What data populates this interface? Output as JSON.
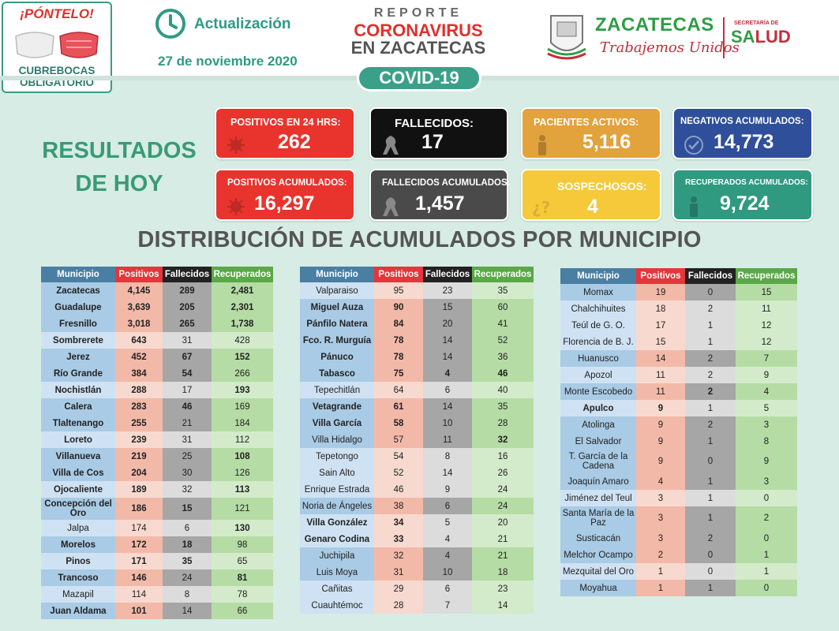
{
  "header": {
    "mask_title": "¡PÓNTELO!",
    "mask_subtitle_1": "CUBREBOCAS",
    "mask_subtitle_2": "OBLIGATORIO",
    "update_label": "Actualización",
    "update_date": "27 de noviembre 2020",
    "report_line1": "REPORTE",
    "report_line2": "CORONAVIRUS",
    "report_line3": "EN ZACATECAS",
    "covid_label": "COVID-19",
    "brand_name": "ZACATECAS",
    "brand_slogan": "Trabajemos Unidos",
    "secretaria_label": "SECRETARÍA DE",
    "salud_a": "SA",
    "salud_b": "LUD"
  },
  "results": {
    "title_line1": "RESULTADOS",
    "title_line2": "DE HOY",
    "cards": [
      {
        "label": "POSITIVOS EN 24 HRS:",
        "value": "262",
        "color": "#e8342d",
        "icon": "virus-icon"
      },
      {
        "label": "FALLECIDOS:",
        "value": "17",
        "color": "#111111",
        "icon": "mourning-ribbon-icon"
      },
      {
        "label": "PACIENTES ACTIVOS:",
        "value": "5,116",
        "color": "#e2a23c",
        "icon": "person-icon"
      },
      {
        "label": "NEGATIVOS ACUMULADOS:",
        "value": "14,773",
        "color": "#2f4f9b",
        "icon": "check-circle-icon"
      },
      {
        "label": "POSITIVOS ACUMULADOS:",
        "value": "16,297",
        "color": "#e8342d",
        "icon": "virus-icon"
      },
      {
        "label": "FALLECIDOS ACUMULADOS:",
        "value": "1,457",
        "color": "#4a4a4a",
        "icon": "mourning-ribbon-icon"
      },
      {
        "label": "SOSPECHOSOS:",
        "value": "4",
        "color": "#f5c93a",
        "icon": "question-icon"
      },
      {
        "label": "RECUPERADOS ACUMULADOS:",
        "value": "9,724",
        "color": "#2f9a80",
        "icon": "person-icon"
      }
    ]
  },
  "distribution": {
    "title": "DISTRIBUCIÓN DE ACUMULADOS POR MUNICIPIO",
    "headers": [
      "Municipio",
      "Positivos",
      "Fallecidos",
      "Recuperados"
    ],
    "tables": [
      [
        [
          "Zacatecas",
          "4,145",
          "289",
          "2,481"
        ],
        [
          "Guadalupe",
          "3,639",
          "205",
          "2,301"
        ],
        [
          "Fresnillo",
          "3,018",
          "265",
          "1,738"
        ],
        [
          "Sombrerete",
          "643",
          "31",
          "428"
        ],
        [
          "Jerez",
          "452",
          "67",
          "152"
        ],
        [
          "Río Grande",
          "384",
          "54",
          "266"
        ],
        [
          "Nochistlán",
          "288",
          "17",
          "193"
        ],
        [
          "Calera",
          "283",
          "46",
          "169"
        ],
        [
          "Tlaltenango",
          "255",
          "21",
          "184"
        ],
        [
          "Loreto",
          "239",
          "31",
          "112"
        ],
        [
          "Villanueva",
          "219",
          "25",
          "108"
        ],
        [
          "Villa de Cos",
          "204",
          "30",
          "126"
        ],
        [
          "Ojocaliente",
          "189",
          "32",
          "113"
        ],
        [
          "Concepción del Oro",
          "186",
          "15",
          "121"
        ],
        [
          "Jalpa",
          "174",
          "6",
          "130"
        ],
        [
          "Morelos",
          "172",
          "18",
          "98"
        ],
        [
          "Pinos",
          "171",
          "35",
          "65"
        ],
        [
          "Trancoso",
          "146",
          "24",
          "81"
        ],
        [
          "Mazapil",
          "114",
          "8",
          "78"
        ],
        [
          "Juan Aldama",
          "101",
          "14",
          "66"
        ]
      ],
      [
        [
          "Valparaiso",
          "95",
          "23",
          "35"
        ],
        [
          "Miguel Auza",
          "90",
          "15",
          "60"
        ],
        [
          "Pánfilo Natera",
          "84",
          "20",
          "41"
        ],
        [
          "Fco. R. Murguía",
          "78",
          "14",
          "52"
        ],
        [
          "Pánuco",
          "78",
          "14",
          "36"
        ],
        [
          "Tabasco",
          "75",
          "4",
          "46"
        ],
        [
          "Tepechitlán",
          "64",
          "6",
          "40"
        ],
        [
          "Vetagrande",
          "61",
          "14",
          "35"
        ],
        [
          "Villa García",
          "58",
          "10",
          "28"
        ],
        [
          "Villa Hidalgo",
          "57",
          "11",
          "32"
        ],
        [
          "Tepetongo",
          "54",
          "8",
          "16"
        ],
        [
          "Sain Alto",
          "52",
          "14",
          "26"
        ],
        [
          "Enrique Estrada",
          "46",
          "9",
          "24"
        ],
        [
          "Noria de Ángeles",
          "38",
          "6",
          "24"
        ],
        [
          "Villa González",
          "34",
          "5",
          "20"
        ],
        [
          "Genaro Codina",
          "33",
          "4",
          "21"
        ],
        [
          "Juchipila",
          "32",
          "4",
          "21"
        ],
        [
          "Luis Moya",
          "31",
          "10",
          "18"
        ],
        [
          "Cañitas",
          "29",
          "6",
          "23"
        ],
        [
          "Cuauhtémoc",
          "28",
          "7",
          "14"
        ]
      ],
      [
        [
          "Momax",
          "19",
          "0",
          "15"
        ],
        [
          "Chalchihuites",
          "18",
          "2",
          "11"
        ],
        [
          "Teúl de G. O.",
          "17",
          "1",
          "12"
        ],
        [
          "Florencia de B. J.",
          "15",
          "1",
          "12"
        ],
        [
          "Huanusco",
          "14",
          "2",
          "7"
        ],
        [
          "Apozol",
          "11",
          "2",
          "9"
        ],
        [
          "Monte Escobedo",
          "11",
          "2",
          "4"
        ],
        [
          "Apulco",
          "9",
          "1",
          "5"
        ],
        [
          "Atolinga",
          "9",
          "2",
          "3"
        ],
        [
          "El Salvador",
          "9",
          "1",
          "8"
        ],
        [
          "T. García de la Cadena",
          "9",
          "0",
          "9"
        ],
        [
          "Joaquín Amaro",
          "4",
          "1",
          "3"
        ],
        [
          "Jiménez del Teul",
          "3",
          "1",
          "0"
        ],
        [
          "Santa María de la Paz",
          "3",
          "1",
          "2"
        ],
        [
          "Susticacán",
          "3",
          "2",
          "0"
        ],
        [
          "Melchor Ocampo",
          "2",
          "0",
          "1"
        ],
        [
          "Mezquital del Oro",
          "1",
          "0",
          "1"
        ],
        [
          "Moyahua",
          "1",
          "1",
          "0"
        ]
      ]
    ]
  }
}
